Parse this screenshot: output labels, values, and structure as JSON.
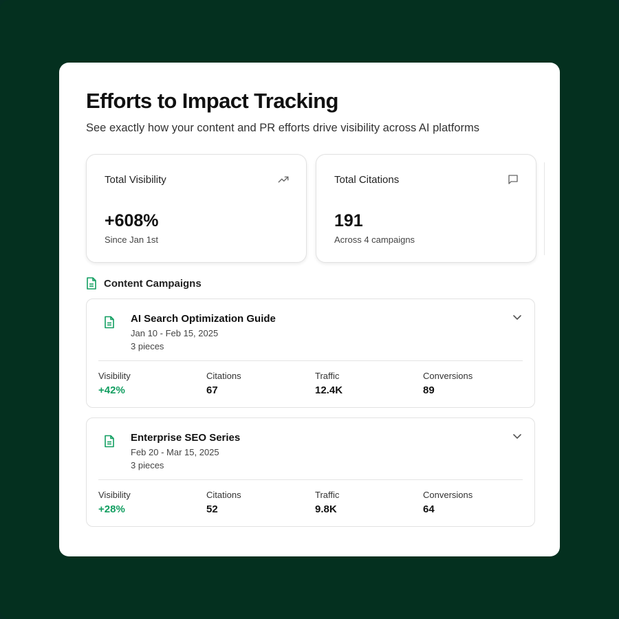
{
  "page": {
    "title": "Efforts to Impact Tracking",
    "subtitle": "See exactly how your content and PR efforts drive visibility across AI platforms"
  },
  "stats": [
    {
      "label": "Total Visibility",
      "value": "+608%",
      "sub": "Since Jan 1st",
      "icon": "trending-up-icon"
    },
    {
      "label": "Total Citations",
      "value": "191",
      "sub": "Across 4 campaigns",
      "icon": "message-square-icon"
    }
  ],
  "section": {
    "title": "Content Campaigns",
    "icon": "document-icon"
  },
  "campaigns": [
    {
      "name": "AI Search Optimization Guide",
      "dates": "Jan 10 - Feb 15, 2025",
      "pieces": "3 pieces",
      "metrics": [
        {
          "label": "Visibility",
          "value": "+42%"
        },
        {
          "label": "Citations",
          "value": "67"
        },
        {
          "label": "Traffic",
          "value": "12.4K"
        },
        {
          "label": "Conversions",
          "value": "89"
        }
      ]
    },
    {
      "name": "Enterprise SEO Series",
      "dates": "Feb 20 - Mar 15, 2025",
      "pieces": "3 pieces",
      "metrics": [
        {
          "label": "Visibility",
          "value": "+28%"
        },
        {
          "label": "Citations",
          "value": "52"
        },
        {
          "label": "Traffic",
          "value": "9.8K"
        },
        {
          "label": "Conversions",
          "value": "64"
        }
      ]
    }
  ],
  "colors": {
    "background": "#04301f",
    "accent_green": "#119e60",
    "card_border": "#e2e2e2"
  }
}
